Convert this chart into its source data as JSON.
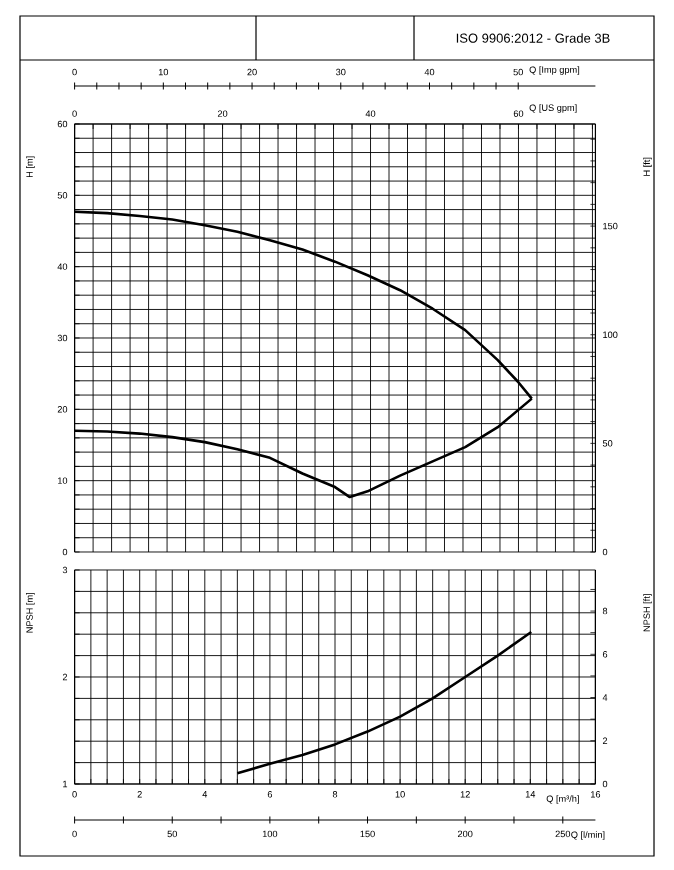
{
  "chart_data": [
    {
      "type": "line",
      "xlabel": "Q [US gpm]",
      "ylabel": "H [m]",
      "y2label": "H [ft]",
      "x2label": "Q [Imp gpm]",
      "annotations": [
        "ISO 9906:2012 - Grade 3B"
      ],
      "grid": true,
      "xlim": [
        0,
        70.4
      ],
      "ylim": [
        0,
        60
      ],
      "y2lim": [
        0,
        197
      ],
      "x2lim": [
        0,
        58.7
      ],
      "xticks": [
        0,
        {
          "value": 2.5,
          "label": null
        },
        {
          "value": 5,
          "label": null
        },
        {
          "value": 7.5,
          "label": null
        },
        {
          "value": 10,
          "label": null
        },
        {
          "value": 12.5,
          "label": null
        },
        {
          "value": 15,
          "label": null
        },
        {
          "value": 17.5,
          "label": null
        },
        20,
        {
          "value": 22.5,
          "label": null
        },
        {
          "value": 25,
          "label": null
        },
        {
          "value": 27.5,
          "label": null
        },
        {
          "value": 30,
          "label": null
        },
        {
          "value": 32.5,
          "label": null
        },
        {
          "value": 35,
          "label": null
        },
        {
          "value": 37.5,
          "label": null
        },
        40,
        {
          "value": 42.5,
          "label": null
        },
        {
          "value": 45,
          "label": null
        },
        {
          "value": 47.5,
          "label": null
        },
        {
          "value": 50,
          "label": null
        },
        {
          "value": 52.5,
          "label": null
        },
        {
          "value": 55,
          "label": null
        },
        {
          "value": 57.5,
          "label": null
        },
        60,
        {
          "value": 62.5,
          "label": null
        },
        {
          "value": 65,
          "label": null
        },
        {
          "value": 67.5,
          "label": null
        },
        {
          "value": 70,
          "label": null
        }
      ],
      "yticks": [
        0,
        {
          "value": 2,
          "label": null
        },
        {
          "value": 4,
          "label": null
        },
        {
          "value": 6,
          "label": null
        },
        {
          "value": 8,
          "label": null
        },
        10,
        {
          "value": 12,
          "label": null
        },
        {
          "value": 14,
          "label": null
        },
        {
          "value": 16,
          "label": null
        },
        {
          "value": 18,
          "label": null
        },
        20,
        {
          "value": 22,
          "label": null
        },
        {
          "value": 24,
          "label": null
        },
        {
          "value": 26,
          "label": null
        },
        {
          "value": 28,
          "label": null
        },
        30,
        {
          "value": 32,
          "label": null
        },
        {
          "value": 34,
          "label": null
        },
        {
          "value": 36,
          "label": null
        },
        {
          "value": 38,
          "label": null
        },
        40,
        {
          "value": 42,
          "label": null
        },
        {
          "value": 44,
          "label": null
        },
        {
          "value": 46,
          "label": null
        },
        {
          "value": 48,
          "label": null
        },
        50,
        {
          "value": 52,
          "label": null
        },
        {
          "value": 54,
          "label": null
        },
        {
          "value": 56,
          "label": null
        },
        {
          "value": 58,
          "label": null
        },
        60
      ],
      "y2ticks": [
        0,
        {
          "value": 10,
          "label": null
        },
        {
          "value": 20,
          "label": null
        },
        {
          "value": 30,
          "label": null
        },
        {
          "value": 40,
          "label": null
        },
        50,
        {
          "value": 60,
          "label": null
        },
        {
          "value": 70,
          "label": null
        },
        {
          "value": 80,
          "label": null
        },
        {
          "value": 90,
          "label": null
        },
        100,
        {
          "value": 110,
          "label": null
        },
        {
          "value": 120,
          "label": null
        },
        {
          "value": 130,
          "label": null
        },
        {
          "value": 140,
          "label": null
        },
        150,
        {
          "value": 160,
          "label": null
        },
        {
          "value": 170,
          "label": null
        },
        {
          "value": 180,
          "label": null
        },
        {
          "value": 190,
          "label": null
        }
      ],
      "x2ticks": [
        0,
        10,
        20,
        30,
        40,
        50
      ],
      "series": [
        {
          "color": "#000000",
          "x": [
            0,
            4.4,
            8.8,
            13.2,
            17.6,
            22.0,
            26.4,
            30.8,
            35.2,
            39.6,
            44.0,
            48.4,
            52.8,
            57.2,
            59.9,
            61.8
          ],
          "values": [
            47.7,
            47.5,
            47.1,
            46.6,
            45.8,
            44.9,
            43.7,
            42.4,
            40.7,
            38.8,
            36.7,
            34.1,
            31.1,
            26.9,
            23.9,
            21.5
          ]
        },
        {
          "color": "#000000",
          "x": [
            0,
            4.4,
            8.8,
            13.2,
            17.6,
            22.0,
            26.4,
            30.8,
            35.2,
            37.2,
            39.6,
            44.0,
            48.4,
            52.8,
            57.2,
            61.8
          ],
          "values": [
            17.0,
            16.9,
            16.6,
            16.1,
            15.4,
            14.4,
            13.2,
            11.0,
            9.1,
            7.7,
            8.5,
            10.7,
            12.7,
            14.7,
            17.5,
            21.5
          ]
        }
      ]
    },
    {
      "type": "line",
      "xlabel": "Q [m³/h]",
      "ylabel": "NPSH [m]",
      "y2label": "NPSH [ft]",
      "x2label": "Q [l/min]",
      "grid": true,
      "xlim": [
        0,
        16
      ],
      "ylim": [
        1,
        3
      ],
      "y2lim": [
        0,
        9.9
      ],
      "x2lim": [
        0,
        266.7
      ],
      "xticks": [
        0,
        {
          "value": 0.5,
          "label": null
        },
        {
          "value": 1,
          "label": null
        },
        {
          "value": 1.5,
          "label": null
        },
        2,
        {
          "value": 2.5,
          "label": null
        },
        {
          "value": 3,
          "label": null
        },
        {
          "value": 3.5,
          "label": null
        },
        4,
        {
          "value": 4.5,
          "label": null
        },
        {
          "value": 5,
          "label": null
        },
        {
          "value": 5.5,
          "label": null
        },
        6,
        {
          "value": 6.5,
          "label": null
        },
        {
          "value": 7,
          "label": null
        },
        {
          "value": 7.5,
          "label": null
        },
        8,
        {
          "value": 8.5,
          "label": null
        },
        {
          "value": 9,
          "label": null
        },
        {
          "value": 9.5,
          "label": null
        },
        10,
        {
          "value": 10.5,
          "label": null
        },
        {
          "value": 11,
          "label": null
        },
        {
          "value": 11.5,
          "label": null
        },
        12,
        {
          "value": 12.5,
          "label": null
        },
        {
          "value": 13,
          "label": null
        },
        {
          "value": 13.5,
          "label": null
        },
        14,
        {
          "value": 14.5,
          "label": null
        },
        {
          "value": 15,
          "label": null
        },
        {
          "value": 15.5,
          "label": null
        },
        16
      ],
      "yticks": [
        1,
        {
          "value": 1.2,
          "label": null
        },
        {
          "value": 1.4,
          "label": null
        },
        {
          "value": 1.6,
          "label": null
        },
        {
          "value": 1.8,
          "label": null
        },
        2,
        {
          "value": 2.2,
          "label": null
        },
        {
          "value": 2.4,
          "label": null
        },
        {
          "value": 2.6,
          "label": null
        },
        {
          "value": 2.8,
          "label": null
        },
        3
      ],
      "y2ticks": [
        0,
        {
          "value": 1,
          "label": null
        },
        2,
        {
          "value": 3,
          "label": null
        },
        4,
        {
          "value": 5,
          "label": null
        },
        6,
        {
          "value": 7,
          "label": null
        },
        8,
        {
          "value": 9,
          "label": null
        }
      ],
      "x2ticks": [
        0,
        {
          "value": 25,
          "label": null
        },
        50,
        {
          "value": 75,
          "label": null
        },
        100,
        {
          "value": 125,
          "label": null
        },
        150,
        {
          "value": 175,
          "label": null
        },
        200,
        {
          "value": 225,
          "label": null
        },
        250
      ],
      "series": [
        {
          "color": "#000000",
          "x": [
            5,
            6,
            7,
            8,
            9,
            10,
            11,
            12,
            13,
            14.03
          ],
          "values": [
            1.1,
            1.19,
            1.27,
            1.37,
            1.49,
            1.63,
            1.8,
            2.0,
            2.2,
            2.42
          ]
        }
      ]
    }
  ]
}
